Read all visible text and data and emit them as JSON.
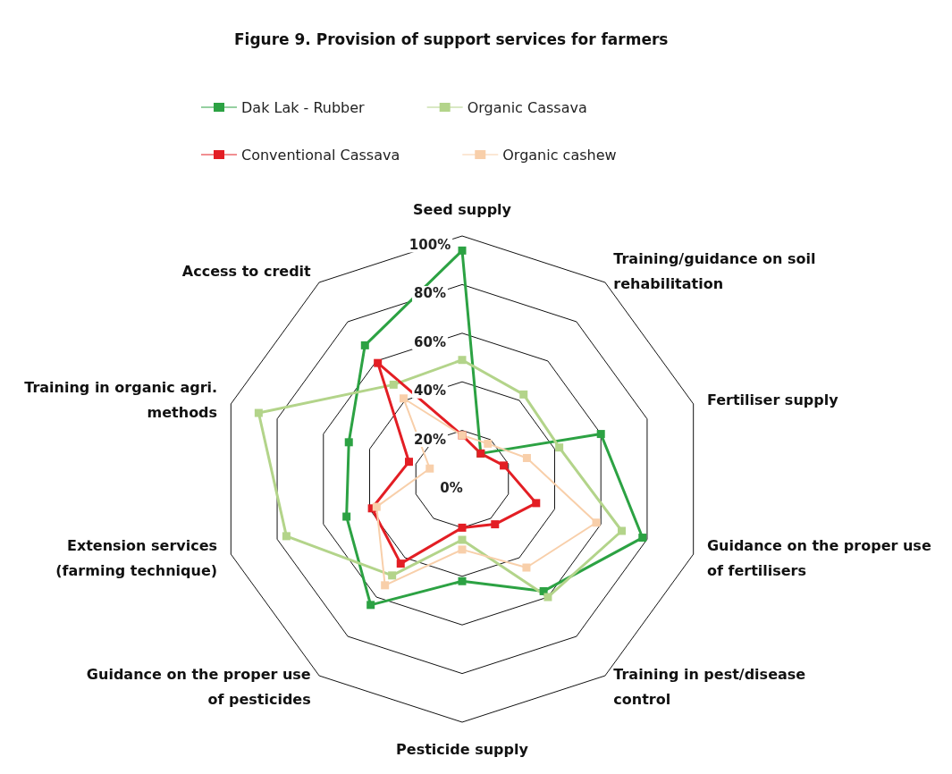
{
  "chart_data": {
    "type": "radar",
    "title": "Figure 9. Provision of support services for farmers",
    "categories": [
      "Seed supply",
      "Training/guidance on soil rehabilitation",
      "Fertiliser supply",
      "Guidance on the proper use of fertilisers",
      "Training in pest/disease control",
      "Pesticide supply",
      "Guidance on the proper use of pesticides",
      "Extension services (farming technique)",
      "Training in organic agri. methods",
      "Access to credit"
    ],
    "series": [
      {
        "name": "Dak Lak - Rubber",
        "color": "#2ca243",
        "values": [
          94,
          13,
          60,
          78,
          57,
          42,
          64,
          50,
          49,
          68
        ]
      },
      {
        "name": "Organic Cassava",
        "color": "#b3d48a",
        "values": [
          49,
          43,
          42,
          69,
          60,
          25,
          49,
          76,
          88,
          48
        ]
      },
      {
        "name": "Conventional Cassava",
        "color": "#e31e24",
        "values": [
          18,
          13,
          18,
          32,
          23,
          20,
          43,
          39,
          23,
          59
        ]
      },
      {
        "name": "Organic cashew",
        "color": "#f8cfaa",
        "values": [
          18,
          18,
          28,
          58,
          45,
          29,
          54,
          37,
          14,
          41
        ]
      }
    ],
    "ylim": [
      0,
      100
    ],
    "yticks": [
      {
        "value": 0,
        "label": "0%"
      },
      {
        "value": 20,
        "label": "20%"
      },
      {
        "value": 40,
        "label": "40%"
      },
      {
        "value": 60,
        "label": "60%"
      },
      {
        "value": 80,
        "label": "80%"
      },
      {
        "value": 100,
        "label": "100%"
      }
    ],
    "legend": "top",
    "marker": "square",
    "line_style": "solid",
    "grid": true
  }
}
